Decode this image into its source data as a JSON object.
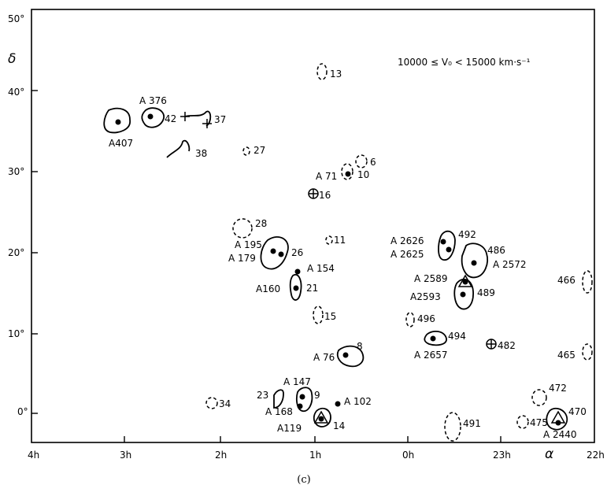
{
  "figure": {
    "caption": "(c)",
    "range_label": "10000 ≤ V₀ < 15000 km·s⁻¹",
    "x_axis": {
      "symbol": "α",
      "ticks": [
        "4h",
        "3h",
        "2h",
        "1h",
        "0h",
        "23h",
        "22h"
      ]
    },
    "y_axis": {
      "symbol": "δ",
      "ticks": [
        "50°",
        "40°",
        "30°",
        "20°",
        "10°",
        "0°"
      ]
    },
    "labels": {
      "a376": "A 376",
      "n42": "42",
      "n37": "37",
      "a407": "A407",
      "n38": "38",
      "n27": "27",
      "n13": "13",
      "a71": "A 71",
      "n10": "10",
      "n6": "6",
      "n16": "16",
      "n28": "28",
      "n11": "11",
      "a195": "A 195",
      "a179": "A 179",
      "n26": "26",
      "a154": "A 154",
      "a160": "A160",
      "n21": "21",
      "n15": "15",
      "n8": "8",
      "a76": "A 76",
      "a147": "A 147",
      "n23": "23",
      "n9": "9",
      "a168": "A 168",
      "a102": "A 102",
      "a119": "A119",
      "n14": "14",
      "n34": "34",
      "a2626": "A 2626",
      "n492": "492",
      "a2625": "A  2625",
      "n486": "486",
      "a2572": "A 2572",
      "a2589": "A 2589",
      "a2593": "A2593",
      "n489": "489",
      "n496": "496",
      "n494": "494",
      "a2657": "A 2657",
      "n482": "482",
      "n466": "466",
      "n465": "465",
      "n472": "472",
      "n491": "491",
      "n475": "475",
      "n470": "470",
      "a2440": "A 2440"
    }
  }
}
